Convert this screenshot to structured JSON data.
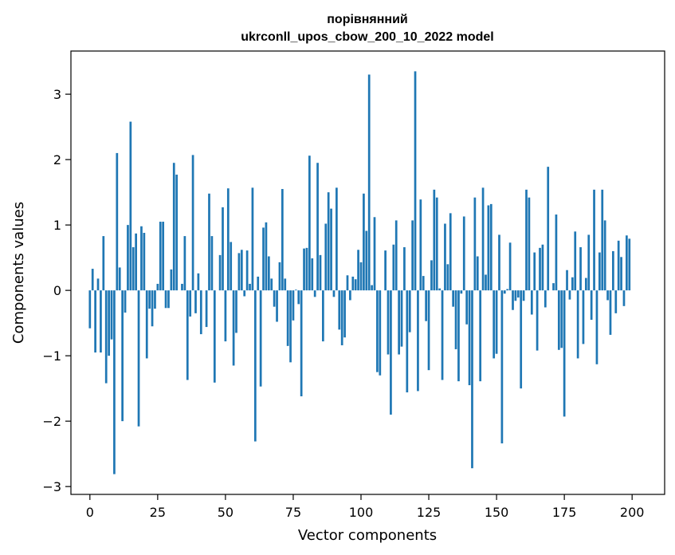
{
  "chart_data": {
    "type": "bar",
    "title": "порівнянний\nukrconll_upos_cbow_200_10_2022 model",
    "xlabel": "Vector components",
    "ylabel": "Components values",
    "bar_color": "#1f77b4",
    "grid": false,
    "legend": "none",
    "xlim": [
      -7,
      212
    ],
    "ylim": [
      -3.12,
      3.66
    ],
    "x_ticks": [
      0,
      25,
      50,
      75,
      100,
      125,
      150,
      175,
      200
    ],
    "y_ticks": [
      -3,
      -2,
      -1,
      0,
      1,
      2,
      3
    ],
    "x_tick_labels": [
      "0",
      "25",
      "50",
      "75",
      "100",
      "125",
      "150",
      "175",
      "200"
    ],
    "y_tick_labels": [
      "−3",
      "−2",
      "−1",
      "0",
      "1",
      "2",
      "3"
    ],
    "values": [
      -0.58,
      0.33,
      -0.95,
      0.18,
      -0.95,
      0.83,
      -1.42,
      -1.0,
      -0.75,
      -2.81,
      2.1,
      0.35,
      -2.0,
      -0.34,
      1.0,
      2.58,
      0.66,
      0.87,
      -2.08,
      0.98,
      0.88,
      -1.04,
      -0.28,
      -0.55,
      -0.28,
      0.1,
      1.05,
      1.05,
      -0.27,
      -0.27,
      0.32,
      1.95,
      1.77,
      0.0,
      0.1,
      0.83,
      -1.37,
      -0.4,
      2.07,
      -0.35,
      0.26,
      -0.67,
      0.0,
      -0.56,
      1.48,
      0.83,
      -1.41,
      0.0,
      0.54,
      1.27,
      -0.78,
      1.56,
      0.74,
      -1.15,
      -0.65,
      0.57,
      0.62,
      -0.09,
      0.61,
      0.1,
      1.57,
      -2.31,
      0.21,
      -1.47,
      0.96,
      1.04,
      0.52,
      0.18,
      -0.25,
      -0.48,
      0.43,
      1.55,
      0.18,
      -0.85,
      -1.1,
      -0.46,
      0.01,
      -0.21,
      -1.62,
      0.64,
      0.65,
      2.06,
      0.49,
      -0.1,
      1.95,
      0.54,
      -0.78,
      1.02,
      1.5,
      1.25,
      -0.1,
      1.57,
      -0.6,
      -0.84,
      -0.72,
      0.23,
      -0.15,
      0.21,
      0.17,
      0.62,
      0.43,
      1.48,
      0.91,
      3.3,
      0.08,
      1.12,
      -1.25,
      -1.3,
      0.0,
      0.61,
      -0.98,
      -1.9,
      0.7,
      1.07,
      -0.98,
      -0.86,
      0.66,
      -1.56,
      -0.64,
      1.07,
      3.35,
      -1.54,
      1.39,
      0.22,
      -0.47,
      -1.22,
      0.46,
      1.54,
      1.42,
      0.03,
      -1.37,
      1.02,
      0.4,
      1.18,
      -0.25,
      -0.9,
      -1.39,
      -0.05,
      1.13,
      -0.52,
      -1.45,
      -2.72,
      1.42,
      0.52,
      -1.39,
      1.57,
      0.24,
      1.3,
      1.32,
      -1.04,
      -0.97,
      0.85,
      -2.34,
      -0.05,
      0.02,
      0.73,
      -0.3,
      -0.16,
      -0.11,
      -1.5,
      -0.16,
      1.54,
      1.42,
      -0.37,
      0.58,
      -0.92,
      0.65,
      0.7,
      -0.26,
      1.89,
      0.0,
      0.11,
      1.16,
      -0.91,
      -0.88,
      -1.93,
      0.31,
      -0.14,
      0.2,
      0.9,
      -1.04,
      0.66,
      -0.82,
      0.19,
      0.85,
      -0.45,
      1.54,
      -1.13,
      0.58,
      1.54,
      1.07,
      -0.15,
      -0.68,
      0.6,
      -0.35,
      0.76,
      0.51,
      -0.24,
      0.84,
      0.79
    ]
  }
}
